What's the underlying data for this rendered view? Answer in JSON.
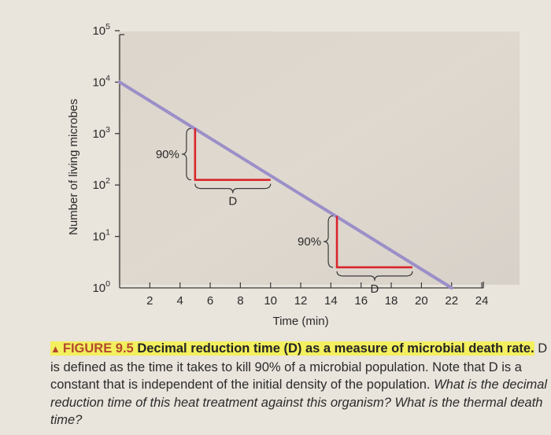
{
  "chart_data": {
    "type": "line",
    "title": "",
    "xlabel": "Time (min)",
    "ylabel": "Number of living microbes",
    "x_ticks": [
      "2",
      "4",
      "6",
      "8",
      "10",
      "12",
      "14",
      "16",
      "18",
      "20",
      "22",
      "24"
    ],
    "y_ticks": [
      {
        "base": "10",
        "exp": "0"
      },
      {
        "base": "10",
        "exp": "1"
      },
      {
        "base": "10",
        "exp": "2"
      },
      {
        "base": "10",
        "exp": "3"
      },
      {
        "base": "10",
        "exp": "4"
      },
      {
        "base": "10",
        "exp": "5"
      }
    ],
    "y_scale": "log",
    "xlim": [
      0,
      24
    ],
    "ylim_exponent": [
      0,
      5
    ],
    "series": [
      {
        "color": "#9a8fc8",
        "points": [
          {
            "x": 0,
            "log10_y": 4.0
          },
          {
            "x": 22,
            "log10_y": 0.0
          }
        ]
      }
    ],
    "annotations": [
      {
        "vertical_label": "90%",
        "brace_label": "D",
        "color": "#d8262b",
        "x_start": 5,
        "x_end": 10,
        "log10_y_start": 3.1,
        "log10_y_end": 2.1
      },
      {
        "vertical_label": "90%",
        "brace_label": "D",
        "color": "#d8262b",
        "x_start": 14.4,
        "x_end": 19.4,
        "log10_y_start": 1.4,
        "log10_y_end": 0.4
      }
    ],
    "grid": false
  },
  "caption": {
    "figure_number": "FIGURE 9.5",
    "title": "Decimal reduction time (D) as a measure of microbial death rate.",
    "body": "D is defined as the time it takes to kill 90% of a microbial population. Note that D is a constant that is independent of the initial density of the population.",
    "questions": "What is the decimal reduction time of this heat treatment against this organism? What is the thermal death time?"
  }
}
